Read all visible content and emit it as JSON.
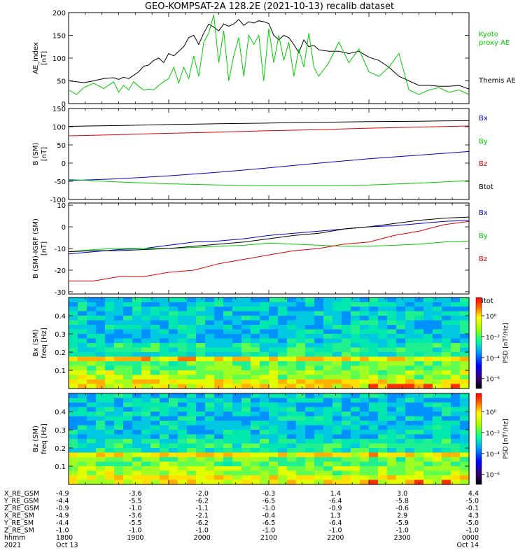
{
  "title": "GEO-KOMPSAT-2A 128.2E (2021-10-13) recalib dataset",
  "colors": {
    "black": "#000000",
    "green": "#00cc00",
    "blue": "#0000cc",
    "red": "#dd0000"
  },
  "chart_data": [
    {
      "type": "line",
      "ylabel": [
        "AE_index",
        "[nT]"
      ],
      "ylim": [
        0,
        200
      ],
      "yticks": [
        "0",
        "50",
        "100",
        "150",
        "200"
      ],
      "legend": [
        {
          "text": "Kyoto",
          "color": "green"
        },
        {
          "text": "proxy AE",
          "color": "green"
        },
        {
          "text": "Themis AE",
          "color": "black"
        }
      ],
      "x": [
        0,
        0.08,
        0.15,
        0.25,
        0.35,
        0.45,
        0.5,
        0.55,
        0.6,
        0.65,
        0.7,
        0.75,
        0.8,
        0.85,
        0.9,
        0.95,
        1.0,
        1.05,
        1.1,
        1.15,
        1.2,
        1.25,
        1.3,
        1.35,
        1.4,
        1.45,
        1.5,
        1.55,
        1.6,
        1.65,
        1.7,
        1.75,
        1.8,
        1.85,
        1.9,
        1.95,
        2.0,
        2.05,
        2.1,
        2.15,
        2.2,
        2.25,
        2.3,
        2.35,
        2.4,
        2.45,
        2.5,
        2.6,
        2.7,
        2.8,
        2.9,
        3.0,
        3.1,
        3.2,
        3.3,
        3.4,
        3.5,
        3.6,
        3.7,
        3.8,
        3.9,
        4.0
      ],
      "series": [
        {
          "name": "Themis AE",
          "color": "black",
          "values": [
            50,
            48,
            46,
            50,
            55,
            57,
            53,
            58,
            55,
            62,
            70,
            82,
            85,
            95,
            100,
            90,
            110,
            105,
            115,
            125,
            145,
            150,
            130,
            155,
            175,
            168,
            160,
            175,
            170,
            175,
            185,
            172,
            180,
            177,
            182,
            180,
            176,
            150,
            140,
            150,
            145,
            130,
            112,
            140,
            125,
            128,
            118,
            115,
            115,
            110,
            115,
            102,
            95,
            80,
            60,
            50,
            40,
            40,
            38,
            38,
            40,
            32
          ]
        },
        {
          "name": "Kyoto proxy AE",
          "color": "green",
          "values": [
            30,
            20,
            35,
            45,
            33,
            48,
            25,
            40,
            30,
            48,
            38,
            30,
            32,
            30,
            40,
            48,
            55,
            80,
            45,
            80,
            55,
            105,
            60,
            135,
            155,
            195,
            90,
            160,
            50,
            105,
            145,
            60,
            150,
            130,
            150,
            50,
            165,
            90,
            150,
            95,
            135,
            60,
            120,
            80,
            155,
            80,
            60,
            90,
            135,
            90,
            120,
            70,
            60,
            80,
            110,
            30,
            20,
            30,
            35,
            25,
            30,
            20
          ]
        }
      ]
    },
    {
      "type": "line",
      "ylabel": [
        "B (SM)",
        "[nT]"
      ],
      "ylim": [
        -100,
        150
      ],
      "yticks": [
        "-100",
        "-50",
        "0",
        "50",
        "100",
        "150"
      ],
      "legend": [
        {
          "text": "Bx",
          "color": "blue"
        },
        {
          "text": "By",
          "color": "green"
        },
        {
          "text": "Bz",
          "color": "red"
        },
        {
          "text": "Btot",
          "color": "black"
        }
      ],
      "x": [
        0,
        0.5,
        1.0,
        1.5,
        2.0,
        2.5,
        3.0,
        3.5,
        4.0
      ],
      "series": [
        {
          "name": "Bx",
          "color": "blue",
          "values": [
            -48,
            -43,
            -35,
            -25,
            -13,
            0,
            12,
            22,
            32
          ]
        },
        {
          "name": "By",
          "color": "green",
          "values": [
            -45,
            -52,
            -57,
            -60,
            -62,
            -62,
            -60,
            -55,
            -48
          ]
        },
        {
          "name": "Bz",
          "color": "red",
          "values": [
            75,
            78,
            82,
            85,
            89,
            92,
            96,
            99,
            102
          ]
        },
        {
          "name": "Btot",
          "color": "black",
          "values": [
            101,
            103,
            106,
            108,
            110,
            112,
            114,
            115,
            117
          ]
        }
      ]
    },
    {
      "type": "line",
      "ylabel": [
        "B (SM)-IGRF (SM)",
        "[nT]"
      ],
      "ylim": [
        -31,
        11
      ],
      "yticks": [
        "-30",
        "-20",
        "-10",
        "0",
        "10"
      ],
      "legend": [
        {
          "text": "Bx",
          "color": "blue"
        },
        {
          "text": "By",
          "color": "green"
        },
        {
          "text": "Bz",
          "color": "red"
        },
        {
          "text": "Btot",
          "color": "black"
        }
      ],
      "x": [
        0,
        0.25,
        0.5,
        0.75,
        1.0,
        1.25,
        1.5,
        1.75,
        2.0,
        2.25,
        2.5,
        2.75,
        3.0,
        3.25,
        3.5,
        3.75,
        4.0
      ],
      "series": [
        {
          "name": "Bx",
          "color": "blue",
          "values": [
            -12.5,
            -11.5,
            -10.5,
            -10,
            -8.5,
            -7,
            -6.5,
            -5.5,
            -4,
            -3,
            -2,
            -1,
            0,
            0.5,
            1.5,
            2.5,
            3
          ]
        },
        {
          "name": "By",
          "color": "green",
          "values": [
            -11.5,
            -10.5,
            -10,
            -10,
            -10,
            -9.5,
            -9,
            -8.5,
            -7.5,
            -8,
            -8.5,
            -9,
            -9,
            -8.5,
            -8,
            -7,
            -6.5
          ]
        },
        {
          "name": "Bz",
          "color": "red",
          "values": [
            -25,
            -25,
            -23,
            -23,
            -21,
            -20,
            -17,
            -15,
            -13,
            -11,
            -10,
            -8,
            -7,
            -4,
            -2,
            1,
            2.5
          ]
        },
        {
          "name": "Btot",
          "color": "black",
          "values": [
            -11.5,
            -11,
            -11,
            -10.5,
            -10,
            -9,
            -8,
            -7,
            -5.5,
            -4,
            -3,
            -1,
            0,
            1.5,
            3,
            4,
            4.5
          ]
        }
      ]
    },
    {
      "type": "heatmap",
      "ylabel": [
        "Bx (SM)",
        "freq [Hz]"
      ],
      "ylim": [
        0,
        0.5
      ],
      "yticks": [
        "0.1",
        "0.2",
        "0.3",
        "0.4"
      ],
      "colorbar_label": "PSD [nT²/Hz]",
      "colorbar_ticks": [
        "10⁰",
        "10⁻²",
        "10⁻⁴",
        "10⁻⁶"
      ],
      "bright_band_hz": 0.17
    },
    {
      "type": "heatmap",
      "ylabel": [
        "Bz (SM)",
        "freq [Hz]"
      ],
      "ylim": [
        0,
        0.5
      ],
      "yticks": [
        "0.1",
        "0.2",
        "0.3",
        "0.4"
      ],
      "colorbar_label": "PSD [nT²/Hz]",
      "colorbar_ticks": [
        "10⁰",
        "10⁻²",
        "10⁻⁴",
        "10⁻⁶"
      ],
      "bright_band_hz": 0.17
    }
  ],
  "ephemeris": {
    "rows": [
      {
        "label": "X_RE_GSM",
        "values": [
          "-4.9",
          "-3.6",
          "-2.0",
          "-0.3",
          "1.4",
          "3.0",
          "4.4"
        ]
      },
      {
        "label": "Y_RE_GSM",
        "values": [
          "-4.4",
          "-5.5",
          "-6.2",
          "-6.5",
          "-6.4",
          "-5.8",
          "-5.0"
        ]
      },
      {
        "label": "Z_RE_GSM",
        "values": [
          "-0.9",
          "-1.0",
          "-1.1",
          "-1.0",
          "-0.9",
          "-0.6",
          "-0.1"
        ]
      },
      {
        "label": "X_RE_SM",
        "values": [
          "-4.9",
          "-3.6",
          "-2.1",
          "-0.4",
          "1.3",
          "2.9",
          "4.3"
        ]
      },
      {
        "label": "Y_RE_SM",
        "values": [
          "-4.4",
          "-5.5",
          "-6.2",
          "-6.5",
          "-6.4",
          "-5.9",
          "-5.0"
        ]
      },
      {
        "label": "Z_RE_SM",
        "values": [
          "-1.0",
          "-1.0",
          "-1.0",
          "-1.0",
          "-1.0",
          "-1.0",
          "-1.0"
        ]
      },
      {
        "label": "hhmm",
        "values": [
          "1800",
          "1900",
          "2000",
          "2100",
          "2200",
          "2300",
          "0000"
        ]
      },
      {
        "label": "2021",
        "values": [
          "Oct 13",
          "",
          "",
          "",
          "",
          "",
          "Oct 14"
        ]
      }
    ]
  }
}
